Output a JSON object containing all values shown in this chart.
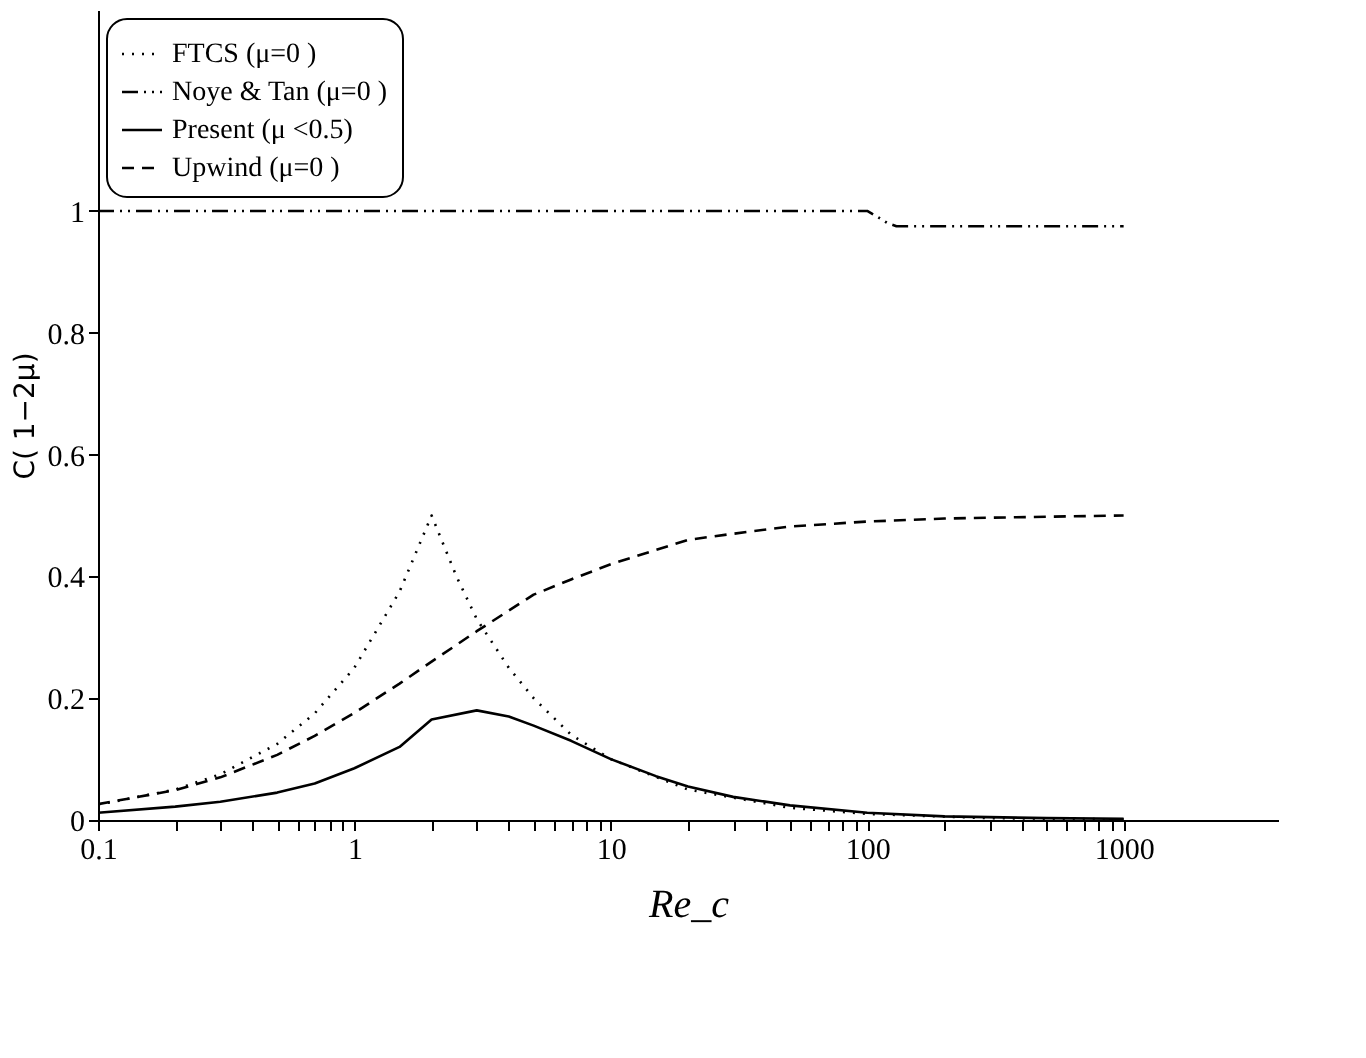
{
  "chart_data": {
    "type": "line",
    "xlabel": "Re_c",
    "ylabel": "C( 1−2μ)",
    "log": "x",
    "grid": false,
    "legend": "top left",
    "xlim": [
      0.1,
      4000
    ],
    "ylim": [
      0,
      1.33
    ],
    "xticks": [
      0.1,
      {
        "value": 0.2,
        "label": null
      },
      {
        "value": 0.3,
        "label": null
      },
      {
        "value": 0.4,
        "label": null
      },
      {
        "value": 0.5,
        "label": null
      },
      {
        "value": 0.6,
        "label": null
      },
      {
        "value": 0.7,
        "label": null
      },
      {
        "value": 0.8,
        "label": null
      },
      {
        "value": 0.9,
        "label": null
      },
      1,
      {
        "value": 2,
        "label": null
      },
      {
        "value": 3,
        "label": null
      },
      {
        "value": 4,
        "label": null
      },
      {
        "value": 5,
        "label": null
      },
      {
        "value": 6,
        "label": null
      },
      {
        "value": 7,
        "label": null
      },
      {
        "value": 8,
        "label": null
      },
      {
        "value": 9,
        "label": null
      },
      10,
      {
        "value": 20,
        "label": null
      },
      {
        "value": 30,
        "label": null
      },
      {
        "value": 40,
        "label": null
      },
      {
        "value": 50,
        "label": null
      },
      {
        "value": 60,
        "label": null
      },
      {
        "value": 70,
        "label": null
      },
      {
        "value": 80,
        "label": null
      },
      {
        "value": 90,
        "label": null
      },
      100,
      {
        "value": 200,
        "label": null
      },
      {
        "value": 300,
        "label": null
      },
      {
        "value": 400,
        "label": null
      },
      {
        "value": 500,
        "label": null
      },
      {
        "value": 600,
        "label": null
      },
      {
        "value": 700,
        "label": null
      },
      {
        "value": 800,
        "label": null
      },
      {
        "value": 900,
        "label": null
      },
      1000
    ],
    "yticks": [
      0,
      0.2,
      0.4,
      0.6,
      0.8,
      1
    ],
    "series": [
      {
        "name": "FTCS (μ=0 )",
        "color": "#000000",
        "line_style": "dotted",
        "x": [
          0.1,
          0.2,
          0.3,
          0.5,
          0.7,
          1,
          1.5,
          2,
          2.5,
          3,
          4,
          5,
          7,
          10,
          20,
          50,
          100,
          300,
          1000
        ],
        "values": [
          0.025,
          0.05,
          0.075,
          0.125,
          0.175,
          0.25,
          0.375,
          0.5,
          0.4,
          0.33,
          0.25,
          0.2,
          0.14,
          0.1,
          0.05,
          0.02,
          0.01,
          0.003,
          0.001
        ]
      },
      {
        "name": "Noye & Tan (μ=0 )",
        "color": "#000000",
        "line_style": "dashdot",
        "x": [
          0.1,
          1,
          10,
          100,
          110,
          120,
          130,
          200,
          1000
        ],
        "values": [
          1,
          1,
          1,
          1,
          0.99,
          0.98,
          0.975,
          0.975,
          0.975
        ]
      },
      {
        "name": "Present (μ <0.5)",
        "color": "#000000",
        "line_style": "solid",
        "x": [
          0.1,
          0.2,
          0.3,
          0.5,
          0.7,
          1,
          1.5,
          2,
          3,
          4,
          5,
          7,
          10,
          15,
          20,
          30,
          50,
          100,
          200,
          500,
          1000
        ],
        "values": [
          0.012,
          0.022,
          0.03,
          0.045,
          0.06,
          0.085,
          0.12,
          0.165,
          0.18,
          0.17,
          0.155,
          0.13,
          0.1,
          0.072,
          0.055,
          0.038,
          0.024,
          0.012,
          0.006,
          0.003,
          0.002
        ]
      },
      {
        "name": "Upwind (μ=0 )",
        "color": "#000000",
        "line_style": "dashed",
        "x": [
          0.1,
          0.2,
          0.3,
          0.5,
          0.7,
          1,
          1.5,
          2,
          3,
          5,
          7,
          10,
          20,
          30,
          50,
          100,
          200,
          500,
          1000
        ],
        "values": [
          0.026,
          0.049,
          0.07,
          0.107,
          0.138,
          0.176,
          0.224,
          0.26,
          0.31,
          0.37,
          0.395,
          0.42,
          0.46,
          0.47,
          0.482,
          0.49,
          0.495,
          0.498,
          0.5
        ]
      }
    ]
  }
}
